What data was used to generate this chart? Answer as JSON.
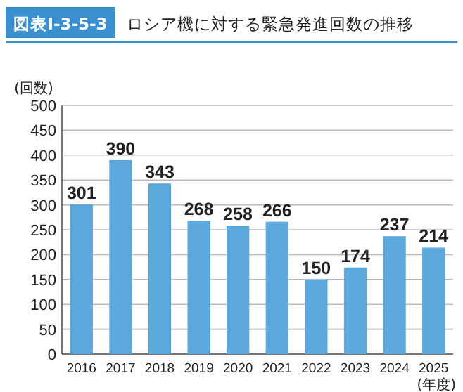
{
  "chart_data": {
    "type": "bar",
    "title": "ロシア機に対する緊急発進回数の推移",
    "annotations": [
      "図表Ⅰ-3-5-3"
    ],
    "ylabel": "(回数)",
    "xlabel": "(年度)",
    "categories": [
      "2016",
      "2017",
      "2018",
      "2019",
      "2020",
      "2021",
      "2022",
      "2023",
      "2024",
      "2025"
    ],
    "values": [
      301,
      390,
      343,
      268,
      258,
      266,
      150,
      174,
      237,
      214
    ],
    "color": "#5ba8dc",
    "ylim": [
      0,
      500
    ],
    "yticks": [
      0,
      50,
      100,
      150,
      200,
      250,
      300,
      350,
      400,
      450,
      500
    ],
    "grid": "y",
    "data_labels": true
  }
}
